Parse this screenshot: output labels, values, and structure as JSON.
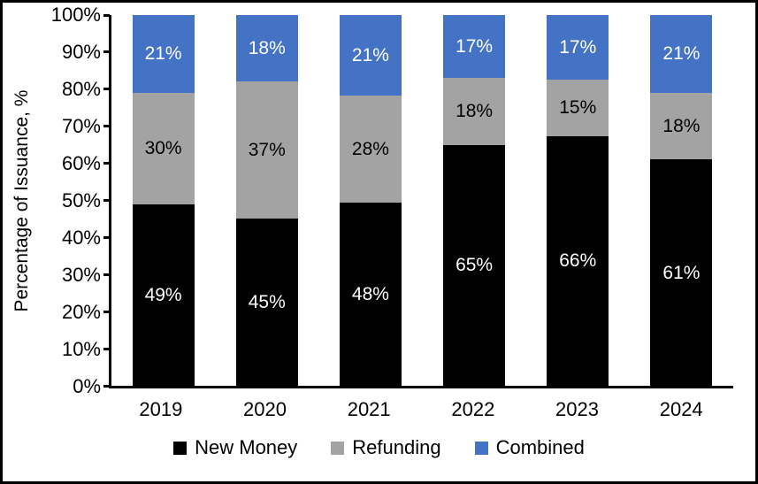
{
  "figure": {
    "background": "#ffffff",
    "border_color": "#000000"
  },
  "chart_data": {
    "type": "bar",
    "stacked": true,
    "units": "percent",
    "title": "",
    "xlabel": "",
    "ylabel": "Percentage of Issuance, %",
    "categories": [
      "2019",
      "2020",
      "2021",
      "2022",
      "2023",
      "2024"
    ],
    "series": [
      {
        "name": "New Money",
        "color": "#000000",
        "label_color": "#ffffff",
        "values": [
          49,
          45,
          48,
          65,
          66,
          61
        ],
        "labels": [
          "49%",
          "45%",
          "48%",
          "65%",
          "66%",
          "61%"
        ]
      },
      {
        "name": "Refunding",
        "color": "#a3a3a3",
        "label_color": "#000000",
        "values": [
          30,
          37,
          28,
          18,
          15,
          18
        ],
        "labels": [
          "30%",
          "37%",
          "28%",
          "18%",
          "15%",
          "18%"
        ]
      },
      {
        "name": "Combined",
        "color": "#4472c4",
        "label_color": "#ffffff",
        "values": [
          21,
          18,
          21,
          17,
          17,
          21
        ],
        "labels": [
          "21%",
          "18%",
          "21%",
          "17%",
          "17%",
          "21%"
        ]
      }
    ],
    "ylim": [
      0,
      100
    ],
    "y_ticks": [
      "0%",
      "10%",
      "20%",
      "30%",
      "40%",
      "50%",
      "60%",
      "70%",
      "80%",
      "90%",
      "100%"
    ],
    "y_tick_values": [
      0,
      10,
      20,
      30,
      40,
      50,
      60,
      70,
      80,
      90,
      100
    ],
    "grid": false,
    "legend_position": "bottom"
  }
}
